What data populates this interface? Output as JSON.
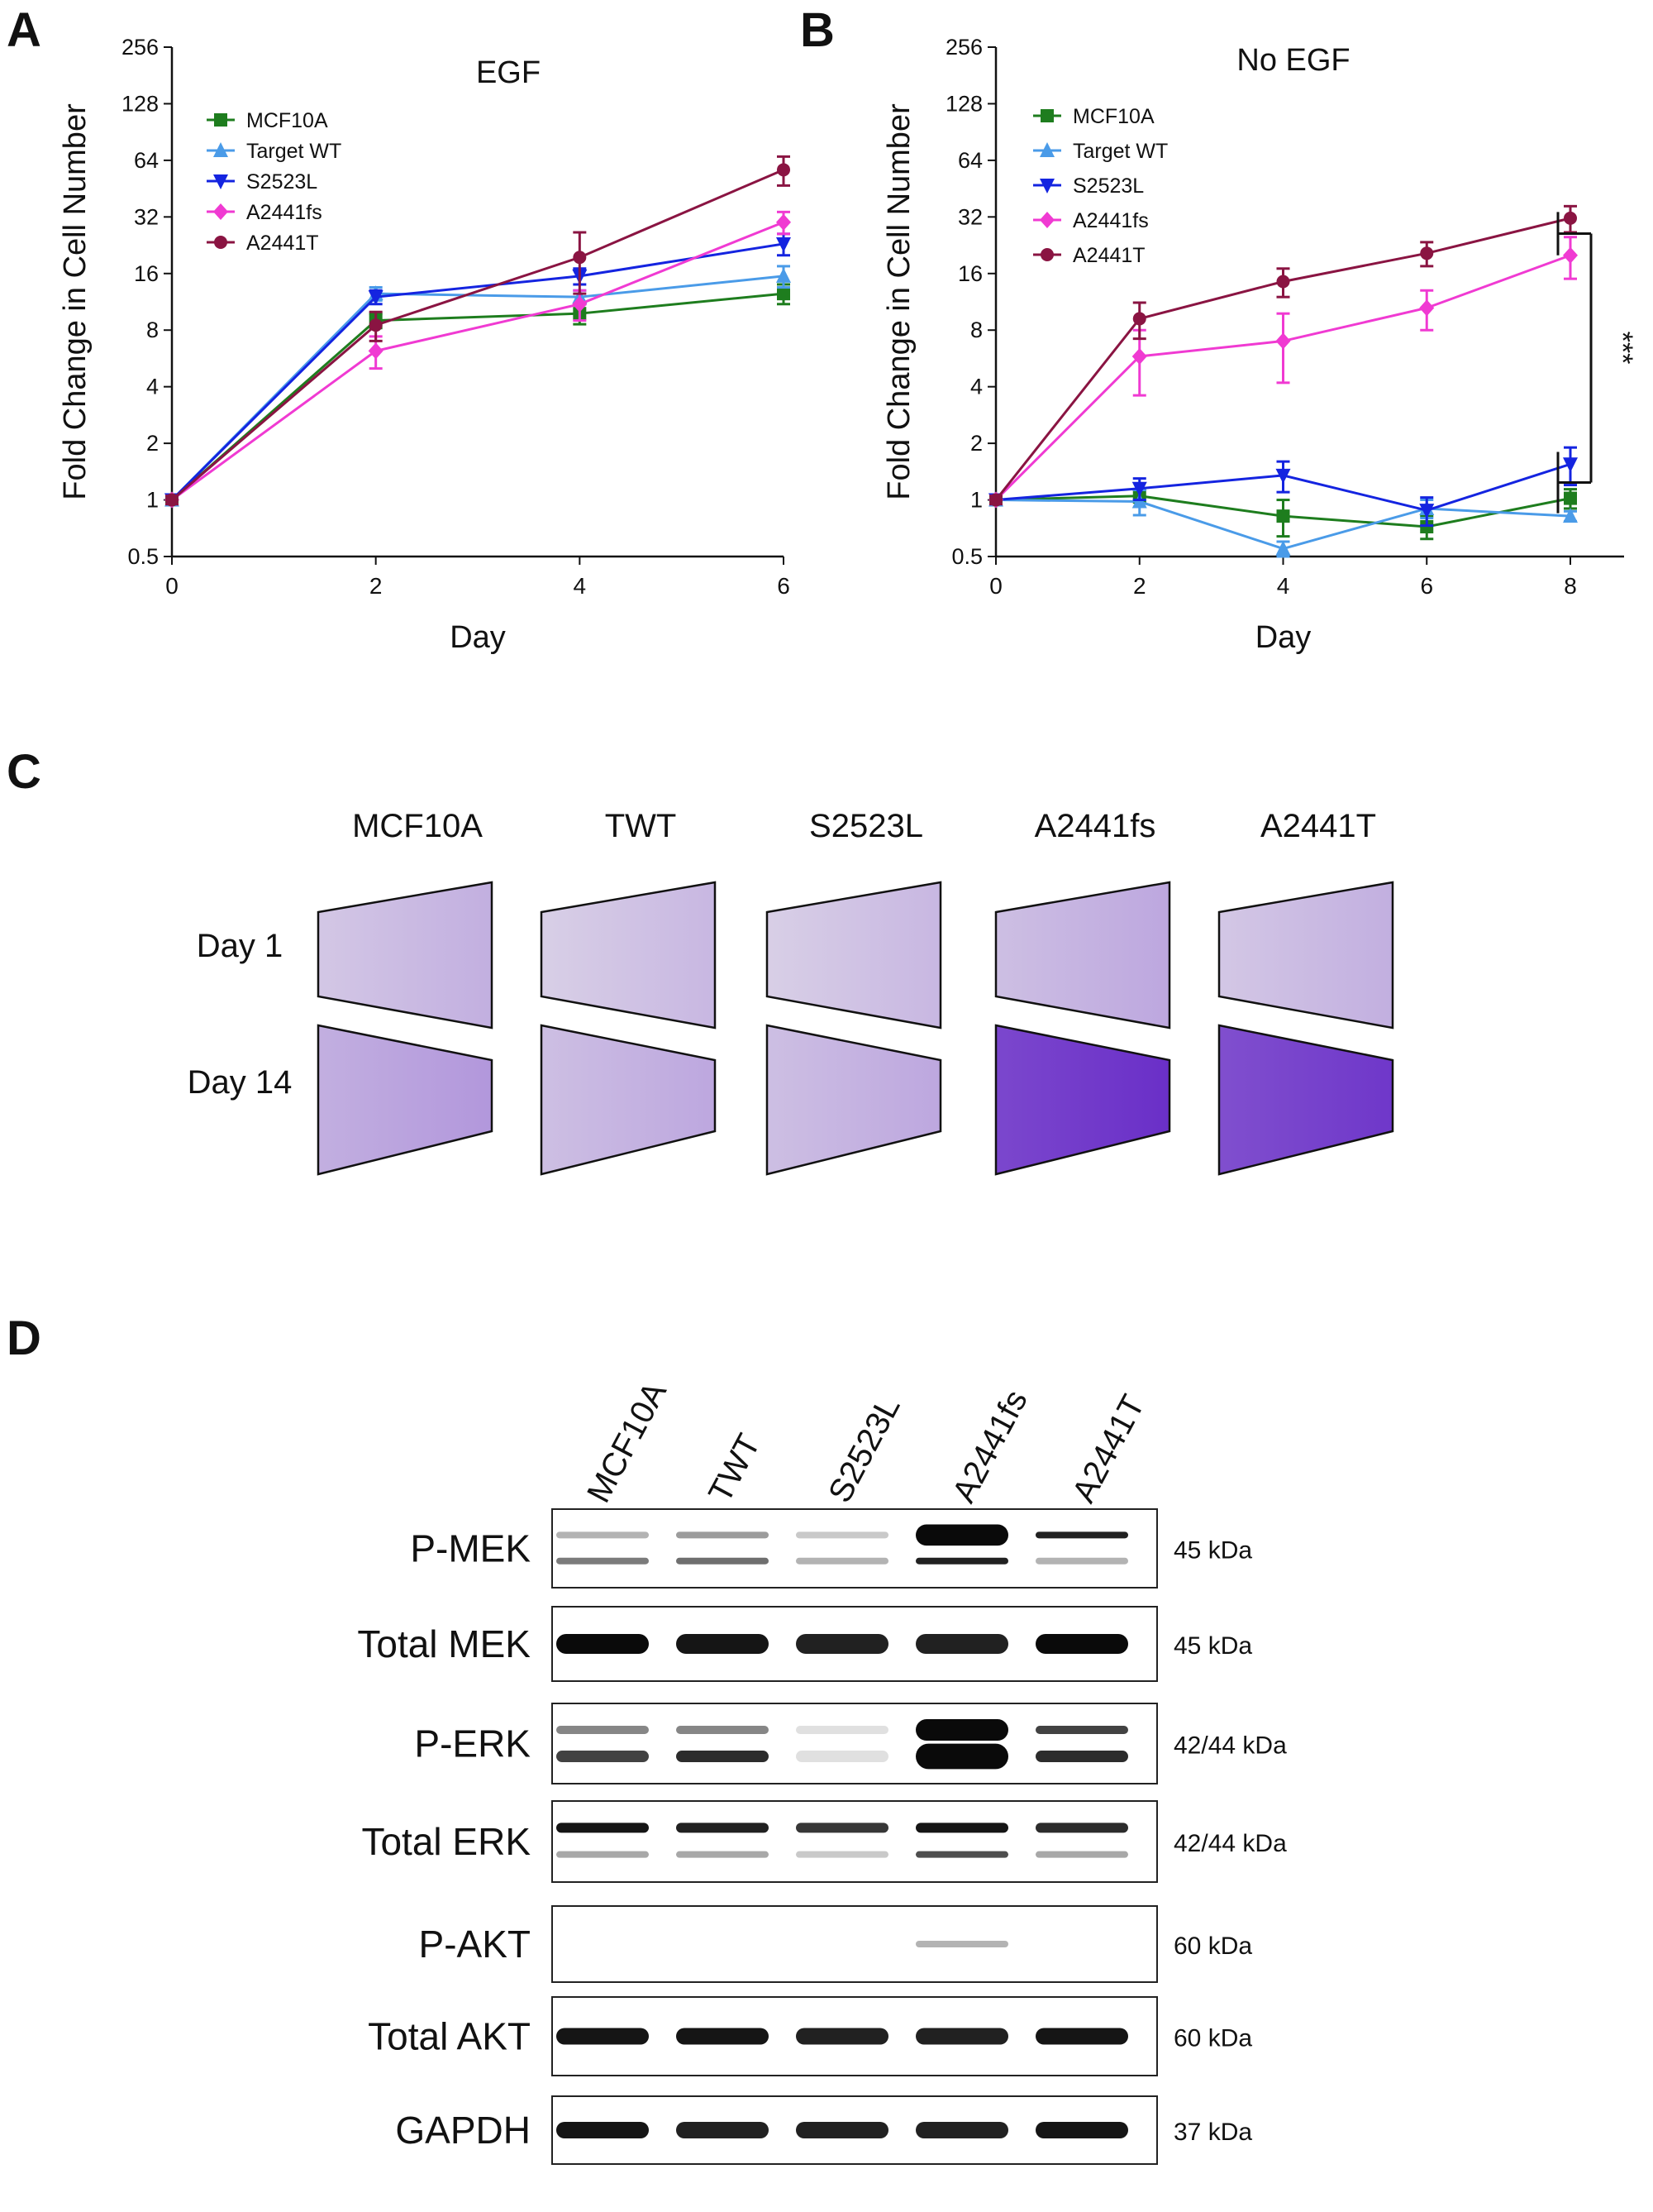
{
  "panels": {
    "A": "A",
    "B": "B",
    "C": "C",
    "D": "D"
  },
  "colors": {
    "MCF10A": "#1e7d1e",
    "Target WT": "#4a9be8",
    "S2523L": "#1424e0",
    "A2441fs": "#f03ad2",
    "A2441T": "#8a1442",
    "crystal_violet_dark": "#6a2fc8",
    "crystal_violet_light": "#d8cfe6"
  },
  "chart_data": [
    {
      "type": "line",
      "panel": "A",
      "title": "EGF",
      "xlabel": "Day",
      "ylabel": "Fold Change in Cell Number",
      "yscale": "log2",
      "ylim": [
        0.5,
        256
      ],
      "xlim": [
        0,
        6
      ],
      "xticks": [
        "0",
        "2",
        "4",
        "6"
      ],
      "yticks": [
        "0.5",
        "1",
        "2",
        "4",
        "8",
        "16",
        "32",
        "64",
        "128",
        "256"
      ],
      "legend_position": "top-left",
      "x": [
        0,
        2,
        4,
        6
      ],
      "series": [
        {
          "name": "MCF10A",
          "marker": "square",
          "values": [
            1,
            9,
            9.8,
            12.5
          ],
          "errors": [
            0.05,
            0.8,
            1.2,
            1.5
          ]
        },
        {
          "name": "Target WT",
          "marker": "triangle-up",
          "values": [
            1,
            12.5,
            12,
            15.5
          ],
          "errors": [
            0.05,
            1.0,
            1.0,
            2.0
          ]
        },
        {
          "name": "S2523L",
          "marker": "triangle-down",
          "values": [
            1,
            12,
            15.5,
            23
          ],
          "errors": [
            0.05,
            1.0,
            1.5,
            3.0
          ]
        },
        {
          "name": "A2441fs",
          "marker": "diamond",
          "values": [
            1,
            6.2,
            11,
            30
          ],
          "errors": [
            0.05,
            1.2,
            2.0,
            4.0
          ]
        },
        {
          "name": "A2441T",
          "marker": "circle",
          "values": [
            1,
            8.5,
            19.5,
            57
          ],
          "errors": [
            0.05,
            1.5,
            7.0,
            10.0
          ]
        }
      ]
    },
    {
      "type": "line",
      "panel": "B",
      "title": "No EGF",
      "xlabel": "Day",
      "ylabel": "Fold Change in Cell Number",
      "yscale": "log2",
      "ylim": [
        0.5,
        256
      ],
      "xlim": [
        0,
        8
      ],
      "xticks": [
        "0",
        "2",
        "4",
        "6",
        "8"
      ],
      "yticks": [
        "0.5",
        "1",
        "2",
        "4",
        "8",
        "16",
        "32",
        "64",
        "128",
        "256"
      ],
      "legend_position": "top-left",
      "annotation": "***",
      "x": [
        0,
        2,
        4,
        6,
        8
      ],
      "series": [
        {
          "name": "MCF10A",
          "marker": "square",
          "values": [
            1,
            1.05,
            0.82,
            0.72,
            1.02
          ],
          "errors": [
            0.05,
            0.08,
            0.18,
            0.1,
            0.12
          ]
        },
        {
          "name": "Target WT",
          "marker": "triangle-up",
          "values": [
            1,
            0.98,
            0.55,
            0.9,
            0.82
          ],
          "errors": [
            0.05,
            0.15,
            0.05,
            0.1,
            0.05
          ]
        },
        {
          "name": "S2523L",
          "marker": "triangle-down",
          "values": [
            1,
            1.15,
            1.35,
            0.88,
            1.55
          ],
          "errors": [
            0.05,
            0.15,
            0.25,
            0.15,
            0.35
          ]
        },
        {
          "name": "A2441fs",
          "marker": "diamond",
          "values": [
            1,
            5.8,
            7,
            10.5,
            20
          ],
          "errors": [
            0.05,
            2.2,
            2.8,
            2.5,
            5.0
          ]
        },
        {
          "name": "A2441T",
          "marker": "circle",
          "values": [
            1,
            9.2,
            14.5,
            20.5,
            31.5
          ],
          "errors": [
            0.05,
            2.0,
            2.5,
            3.0,
            5.0
          ]
        }
      ]
    }
  ],
  "panel_c": {
    "columns": [
      "MCF10A",
      "TWT",
      "S2523L",
      "A2441fs",
      "A2441T"
    ],
    "rows": [
      "Day 1",
      "Day 14"
    ],
    "stain_intensity": {
      "Day 1": [
        0.15,
        0.1,
        0.1,
        0.2,
        0.15
      ],
      "Day 14": [
        0.3,
        0.2,
        0.2,
        0.95,
        0.9
      ]
    }
  },
  "panel_d": {
    "lanes": [
      "MCF10A",
      "TWT",
      "S2523L",
      "A2441fs",
      "A2441T"
    ],
    "blots": [
      {
        "label": "P-MEK",
        "size": "45 kDa"
      },
      {
        "label": "Total MEK",
        "size": "45 kDa"
      },
      {
        "label": "P-ERK",
        "size": "42/44 kDa"
      },
      {
        "label": "Total ERK",
        "size": "42/44 kDa"
      },
      {
        "label": "P-AKT",
        "size": "60 kDa"
      },
      {
        "label": "Total AKT",
        "size": "60 kDa"
      },
      {
        "label": "GAPDH",
        "size": "37 kDa"
      }
    ]
  }
}
